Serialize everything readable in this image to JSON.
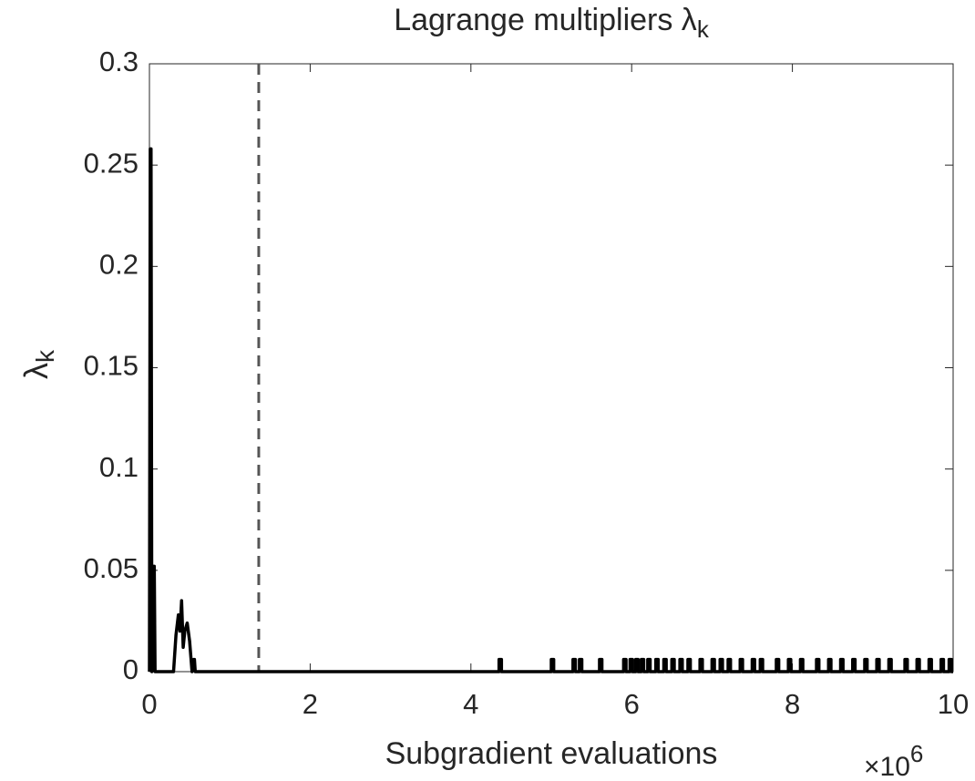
{
  "chart_data": {
    "type": "line",
    "title": "Lagrange multipliers λ",
    "title_subscript": "k",
    "xlabel": "Subgradient evaluations",
    "ylabel": "λ",
    "ylabel_subscript": "k",
    "x_multiplier": {
      "base": "×10",
      "exponent": "6"
    },
    "color": "#000000",
    "x": [
      0,
      0.01,
      0.02,
      0.03,
      0.05,
      0.06,
      0.07,
      0.3,
      0.33,
      0.36,
      0.38,
      0.4,
      0.42,
      0.44,
      0.47,
      0.5,
      0.53,
      0.55,
      0.56,
      0.57,
      4.35,
      4.35,
      4.38,
      4.38,
      5.0,
      5.0,
      5.03,
      5.03,
      5.27,
      5.27,
      5.3,
      5.3,
      5.35,
      5.35,
      5.38,
      5.38,
      5.6,
      5.6,
      5.63,
      5.63,
      5.9,
      5.9,
      5.93,
      5.93,
      5.98,
      5.98,
      6.01,
      6.01,
      6.05,
      6.05,
      6.08,
      6.08,
      6.12,
      6.12,
      6.15,
      6.15,
      6.2,
      6.2,
      6.23,
      6.23,
      6.3,
      6.3,
      6.33,
      6.33,
      6.4,
      6.4,
      6.43,
      6.43,
      6.5,
      6.5,
      6.53,
      6.53,
      6.6,
      6.6,
      6.63,
      6.63,
      6.7,
      6.7,
      6.73,
      6.73,
      6.85,
      6.85,
      6.88,
      6.88,
      7.0,
      7.0,
      7.03,
      7.03,
      7.1,
      7.1,
      7.13,
      7.13,
      7.2,
      7.2,
      7.23,
      7.23,
      7.35,
      7.35,
      7.38,
      7.38,
      7.5,
      7.5,
      7.53,
      7.53,
      7.6,
      7.6,
      7.63,
      7.63,
      7.8,
      7.8,
      7.83,
      7.83,
      7.95,
      7.95,
      7.98,
      7.98,
      8.1,
      8.1,
      8.13,
      8.13,
      8.3,
      8.3,
      8.33,
      8.33,
      8.45,
      8.45,
      8.48,
      8.48,
      8.6,
      8.6,
      8.63,
      8.63,
      8.75,
      8.75,
      8.78,
      8.78,
      8.9,
      8.9,
      8.93,
      8.93,
      9.05,
      9.05,
      9.08,
      9.08,
      9.2,
      9.2,
      9.23,
      9.23,
      9.4,
      9.4,
      9.43,
      9.43,
      9.55,
      9.55,
      9.58,
      9.58,
      9.7,
      9.7,
      9.73,
      9.73,
      9.85,
      9.85,
      9.88,
      9.88,
      9.95,
      9.95,
      9.98,
      9.98,
      10
    ],
    "values": [
      0,
      0.258,
      0.258,
      0,
      0.052,
      0.052,
      0,
      0,
      0.018,
      0.028,
      0.02,
      0.035,
      0.012,
      0.02,
      0.024,
      0.015,
      0,
      0.006,
      0.006,
      0,
      0,
      0.006,
      0.006,
      0,
      0,
      0.006,
      0.006,
      0,
      0,
      0.006,
      0.006,
      0,
      0,
      0.006,
      0.006,
      0,
      0,
      0.006,
      0.006,
      0,
      0,
      0.006,
      0.006,
      0,
      0,
      0.006,
      0.006,
      0,
      0,
      0.006,
      0.006,
      0,
      0,
      0.006,
      0.006,
      0,
      0,
      0.006,
      0.006,
      0,
      0,
      0.006,
      0.006,
      0,
      0,
      0.006,
      0.006,
      0,
      0,
      0.006,
      0.006,
      0,
      0,
      0.006,
      0.006,
      0,
      0,
      0.006,
      0.006,
      0,
      0,
      0.006,
      0.006,
      0,
      0,
      0.006,
      0.006,
      0,
      0,
      0.006,
      0.006,
      0,
      0,
      0.006,
      0.006,
      0,
      0,
      0.006,
      0.006,
      0,
      0,
      0.006,
      0.006,
      0,
      0,
      0.006,
      0.006,
      0,
      0,
      0.006,
      0.006,
      0,
      0,
      0.006,
      0.006,
      0,
      0,
      0.006,
      0.006,
      0,
      0,
      0.006,
      0.006,
      0,
      0,
      0.006,
      0.006,
      0,
      0,
      0.006,
      0.006,
      0,
      0,
      0.006,
      0.006,
      0,
      0,
      0.006,
      0.006,
      0,
      0,
      0.006,
      0.006,
      0,
      0,
      0.006,
      0.006,
      0,
      0,
      0.006,
      0.006,
      0,
      0,
      0.006,
      0.006,
      0,
      0,
      0.006,
      0.006,
      0,
      0,
      0.006,
      0.006,
      0,
      0,
      0.006,
      0.006,
      0,
      0
    ],
    "reference_line": {
      "x": 1.36,
      "color": "#555555",
      "dashed": true
    },
    "xlim": [
      0,
      10
    ],
    "xticks": [
      0,
      2,
      4,
      6,
      8,
      10
    ],
    "ylim": [
      0,
      0.3
    ],
    "yticks": [
      0,
      0.05,
      0.1,
      0.15,
      0.2,
      0.25,
      0.3
    ],
    "grid": false
  }
}
